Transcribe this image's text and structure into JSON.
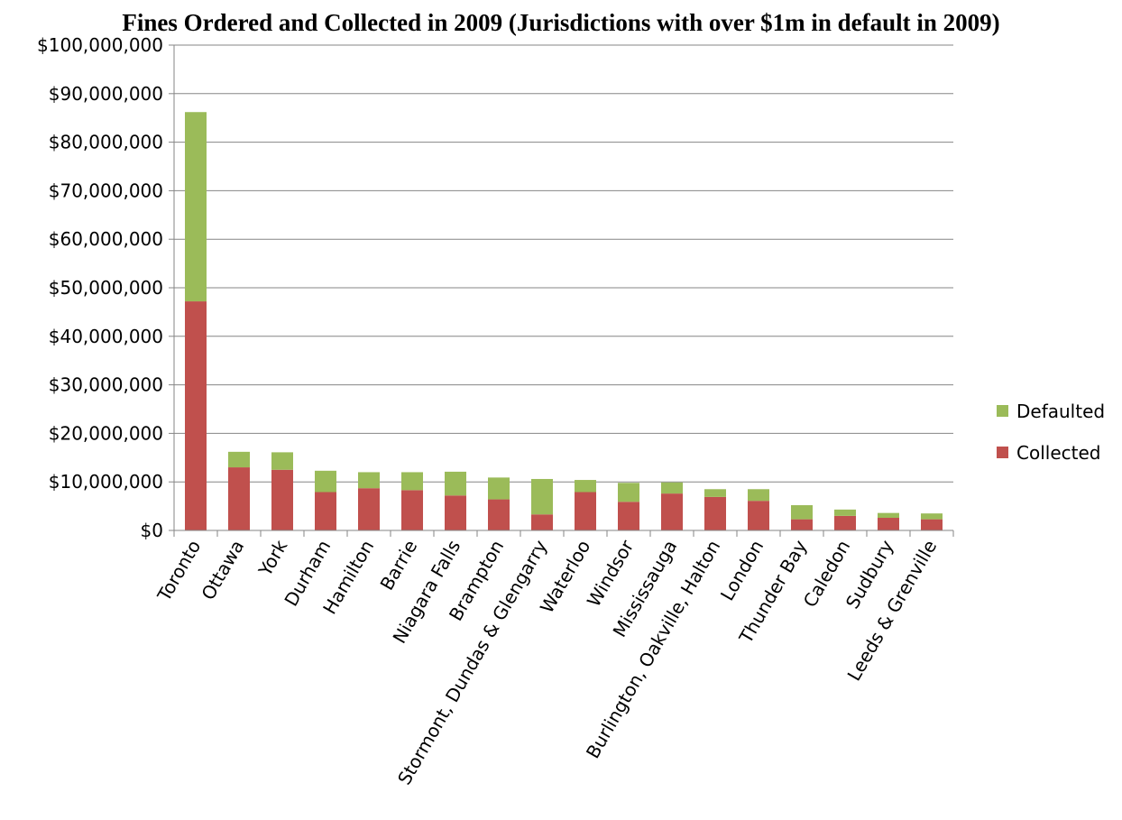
{
  "chart_data": {
    "type": "bar",
    "stacked": true,
    "title": "Fines Ordered and Collected in 2009 (Jurisdictions with over $1m in default in 2009)",
    "categories": [
      "Toronto",
      "Ottawa",
      "York",
      "Durham",
      "Hamilton",
      "Barrie",
      "Niagara Falls",
      "Brampton",
      "Stormont, Dundas & Glengarry",
      "Waterloo",
      "Windsor",
      "Mississauga",
      "Burlington, Oakville, Halton",
      "London",
      "Thunder Bay",
      "Caledon",
      "Sudbury",
      "Leeds & Grenville"
    ],
    "series": [
      {
        "name": "Collected",
        "color": "#c0504d",
        "values": [
          47200000,
          13000000,
          12500000,
          7900000,
          8700000,
          8300000,
          7200000,
          6400000,
          3300000,
          7900000,
          5900000,
          7600000,
          6900000,
          6100000,
          2300000,
          3000000,
          2600000,
          2300000
        ]
      },
      {
        "name": "Defaulted",
        "color": "#9bbb59",
        "values": [
          39000000,
          3200000,
          3600000,
          4400000,
          3300000,
          3700000,
          4900000,
          4500000,
          7300000,
          2500000,
          3900000,
          2300000,
          1600000,
          2400000,
          2900000,
          1300000,
          1000000,
          1200000
        ]
      }
    ],
    "ylim": [
      0,
      100000000
    ],
    "yticks": [
      0,
      10000000,
      20000000,
      30000000,
      40000000,
      50000000,
      60000000,
      70000000,
      80000000,
      90000000,
      100000000
    ],
    "ytick_labels": [
      "$0",
      "$10,000,000",
      "$20,000,000",
      "$30,000,000",
      "$40,000,000",
      "$50,000,000",
      "$60,000,000",
      "$70,000,000",
      "$80,000,000",
      "$90,000,000",
      "$100,000,000"
    ],
    "grid": true,
    "legend": {
      "placement": "right",
      "items": [
        "Defaulted",
        "Collected"
      ]
    },
    "gridline_color": "#868686",
    "axis_color": "#868686"
  }
}
